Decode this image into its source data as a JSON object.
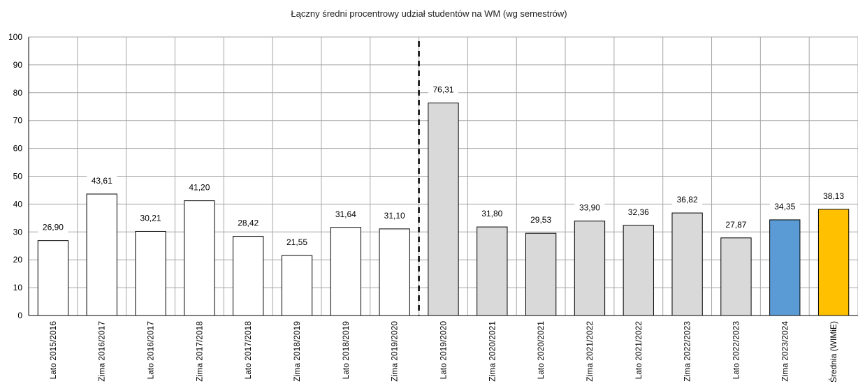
{
  "chart_data": {
    "type": "bar",
    "title": "Łączny średni procentrowy udział studentów na WM (wg semestrów)",
    "xlabel": "",
    "ylabel": "",
    "ylim": [
      0,
      100
    ],
    "yticks": [
      "0",
      "10",
      "20",
      "30",
      "40",
      "50",
      "60",
      "70",
      "80",
      "90",
      "100"
    ],
    "grid": true,
    "legend": "none",
    "categories": [
      "Lato 2015/2016",
      "Zima 2016/2017",
      "Lato 2016/2017",
      "Zima 2017/2018",
      "Lato 2017/2018",
      "Zima 2018/2019",
      "Lato 2018/2019",
      "Zima 2019/2020",
      "Lato 2019/2020",
      "Zima 2020/2021",
      "Lato 2020/2021",
      "Zima 2021/2022",
      "Lato 2021/2022",
      "Zima 2022/2023",
      "Lato 2022/2023",
      "Zima 2023/2024",
      "Średnia (WIMiE)"
    ],
    "values": [
      26.9,
      43.61,
      30.21,
      41.2,
      28.42,
      21.55,
      31.64,
      31.1,
      76.31,
      31.8,
      29.53,
      33.9,
      32.36,
      36.82,
      27.87,
      34.35,
      38.13
    ],
    "value_labels": [
      "26,90",
      "43,61",
      "30,21",
      "41,20",
      "28,42",
      "21,55",
      "31,64",
      "31,10",
      "76,31",
      "31,80",
      "29,53",
      "33,90",
      "32,36",
      "36,82",
      "27,87",
      "34,35",
      "38,13"
    ],
    "bar_colors": [
      "#ffffff",
      "#ffffff",
      "#ffffff",
      "#ffffff",
      "#ffffff",
      "#ffffff",
      "#ffffff",
      "#ffffff",
      "#d9d9d9",
      "#d9d9d9",
      "#d9d9d9",
      "#d9d9d9",
      "#d9d9d9",
      "#d9d9d9",
      "#d9d9d9",
      "#5b9bd5",
      "#ffc000"
    ],
    "divider_after_category": "Zima 2019/2020"
  }
}
